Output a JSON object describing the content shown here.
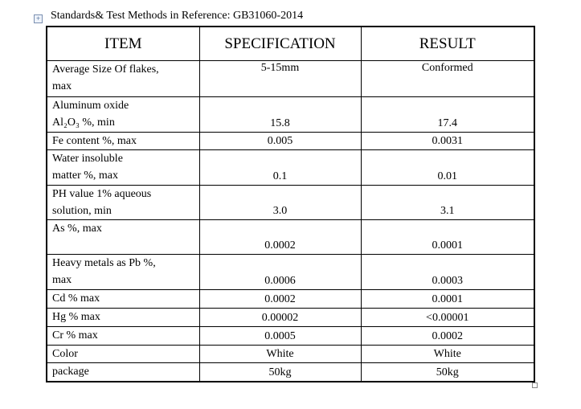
{
  "caption": "Standards& Test Methods in Reference: GB31060-2014",
  "table": {
    "headers": [
      "ITEM",
      "SPECIFICATION",
      "RESULT"
    ],
    "rows": [
      {
        "label": [
          "Average  Size  Of  flakes,",
          "max"
        ],
        "specification": "5-15mm",
        "result": "Conformed"
      },
      {
        "label": [
          "Aluminum oxide",
          "Al₂O₃ %,      min"
        ],
        "specification": "15.8",
        "result": "17.4"
      },
      {
        "label": [
          "Fe    content %,    max"
        ],
        "specification": "0.005",
        "result": "0.0031"
      },
      {
        "label": [
          "Water insoluble",
          "matter %,    max"
        ],
        "specification": "0.1",
        "result": "0.01"
      },
      {
        "label": [
          "PH value    1% aqueous",
          "solution,   min"
        ],
        "specification": "3.0",
        "result": "3.1"
      },
      {
        "label": [
          "",
          "As    %,    max"
        ],
        "specification": "0.0002",
        "result": "0.0001"
      },
      {
        "label": [
          "Heavy  metals  as  Pb  %,",
          "max"
        ],
        "specification": "0.0006",
        "result": "0.0003"
      },
      {
        "label": [
          "Cd % max"
        ],
        "specification": "0.0002",
        "result": "0.0001"
      },
      {
        "label": [
          "Hg % max"
        ],
        "specification": "0.00002",
        "result": "<0.00001"
      },
      {
        "label": [
          "Cr % max"
        ],
        "specification": "0.0005",
        "result": "0.0002"
      },
      {
        "label": [
          "Color"
        ],
        "specification": "White",
        "result": "White"
      },
      {
        "label": [
          "package"
        ],
        "specification": "50kg",
        "result": "50kg"
      }
    ]
  }
}
